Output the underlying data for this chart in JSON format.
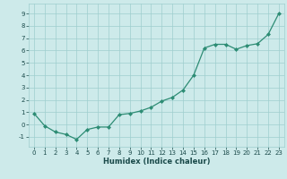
{
  "x": [
    0,
    1,
    2,
    3,
    4,
    5,
    6,
    7,
    8,
    9,
    10,
    11,
    12,
    13,
    14,
    15,
    16,
    17,
    18,
    19,
    20,
    21,
    22,
    23
  ],
  "y": [
    0.9,
    -0.1,
    -0.6,
    -0.8,
    -1.2,
    -0.4,
    -0.2,
    -0.2,
    0.8,
    0.9,
    1.1,
    1.4,
    1.9,
    2.2,
    2.8,
    4.0,
    6.2,
    6.5,
    6.5,
    6.1,
    6.4,
    6.55,
    7.3,
    9.0
  ],
  "xlabel": "Humidex (Indice chaleur)",
  "xlim": [
    -0.5,
    23.5
  ],
  "ylim": [
    -1.8,
    9.8
  ],
  "yticks": [
    -1,
    0,
    1,
    2,
    3,
    4,
    5,
    6,
    7,
    8,
    9
  ],
  "xticks": [
    0,
    1,
    2,
    3,
    4,
    5,
    6,
    7,
    8,
    9,
    10,
    11,
    12,
    13,
    14,
    15,
    16,
    17,
    18,
    19,
    20,
    21,
    22,
    23
  ],
  "line_color": "#2d8c74",
  "marker": "D",
  "marker_size": 2.0,
  "linewidth": 0.9,
  "bg_color": "#cdeaea",
  "grid_color": "#9ecece",
  "font_color": "#1a4a4a",
  "tick_fontsize": 5.0,
  "xlabel_fontsize": 6.0
}
